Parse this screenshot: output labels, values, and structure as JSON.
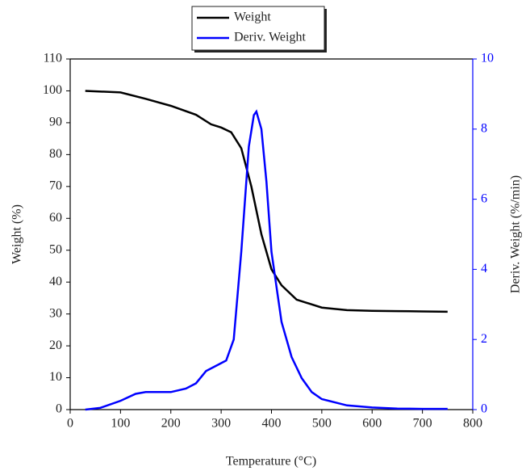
{
  "chart_data": {
    "type": "line",
    "xlabel": "Temperature (°C)",
    "ylabel": "Weight (%)",
    "y2label": "Deriv. Weight (%/min)",
    "xlim": [
      0,
      800
    ],
    "xticks": [
      0,
      100,
      200,
      300,
      400,
      500,
      600,
      700,
      800
    ],
    "ylim": [
      0,
      110
    ],
    "yticks": [
      0,
      10,
      20,
      30,
      40,
      50,
      60,
      70,
      80,
      90,
      100,
      110
    ],
    "y2lim": [
      0,
      10
    ],
    "y2ticks": [
      0,
      2,
      4,
      6,
      8,
      10
    ],
    "legend": "top",
    "series": [
      {
        "name": "Weight",
        "color": "#000000",
        "axis": "y",
        "x": [
          30,
          100,
          150,
          200,
          250,
          280,
          300,
          320,
          340,
          360,
          380,
          400,
          420,
          450,
          500,
          550,
          600,
          650,
          700,
          750
        ],
        "values": [
          100,
          99.5,
          97.5,
          95.3,
          92.5,
          89.5,
          88.5,
          87,
          82,
          70,
          55,
          44,
          39,
          34.5,
          32,
          31.2,
          31,
          30.9,
          30.8,
          30.7
        ]
      },
      {
        "name": "Deriv. Weight",
        "color": "#0000ff",
        "axis": "y2",
        "x": [
          30,
          60,
          100,
          130,
          150,
          200,
          230,
          250,
          270,
          290,
          310,
          325,
          340,
          355,
          365,
          370,
          380,
          390,
          400,
          420,
          440,
          460,
          480,
          500,
          550,
          600,
          650,
          700,
          750
        ],
        "values": [
          0,
          0.05,
          0.25,
          0.45,
          0.5,
          0.5,
          0.6,
          0.75,
          1.1,
          1.25,
          1.4,
          2,
          4.5,
          7.5,
          8.4,
          8.5,
          8,
          6.5,
          4.5,
          2.5,
          1.5,
          0.9,
          0.5,
          0.3,
          0.12,
          0.06,
          0.03,
          0.02,
          0.02
        ]
      }
    ]
  }
}
